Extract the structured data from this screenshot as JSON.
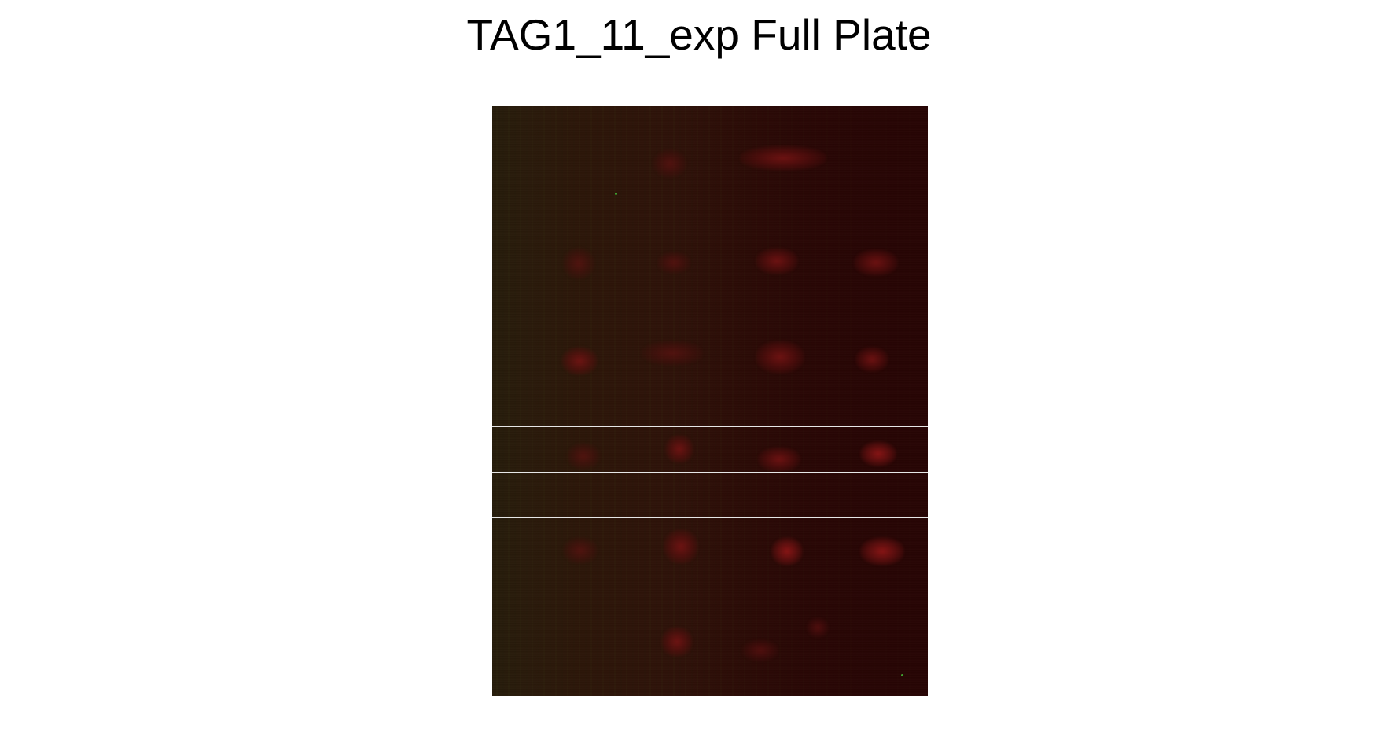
{
  "title": "TAG1_11_exp Full Plate",
  "image": {
    "description_kind": "fluorescence plate scan",
    "dominant_color": "#2e0a07",
    "spot_color": "#7a1414",
    "separator_color": "#e6e6e6"
  }
}
